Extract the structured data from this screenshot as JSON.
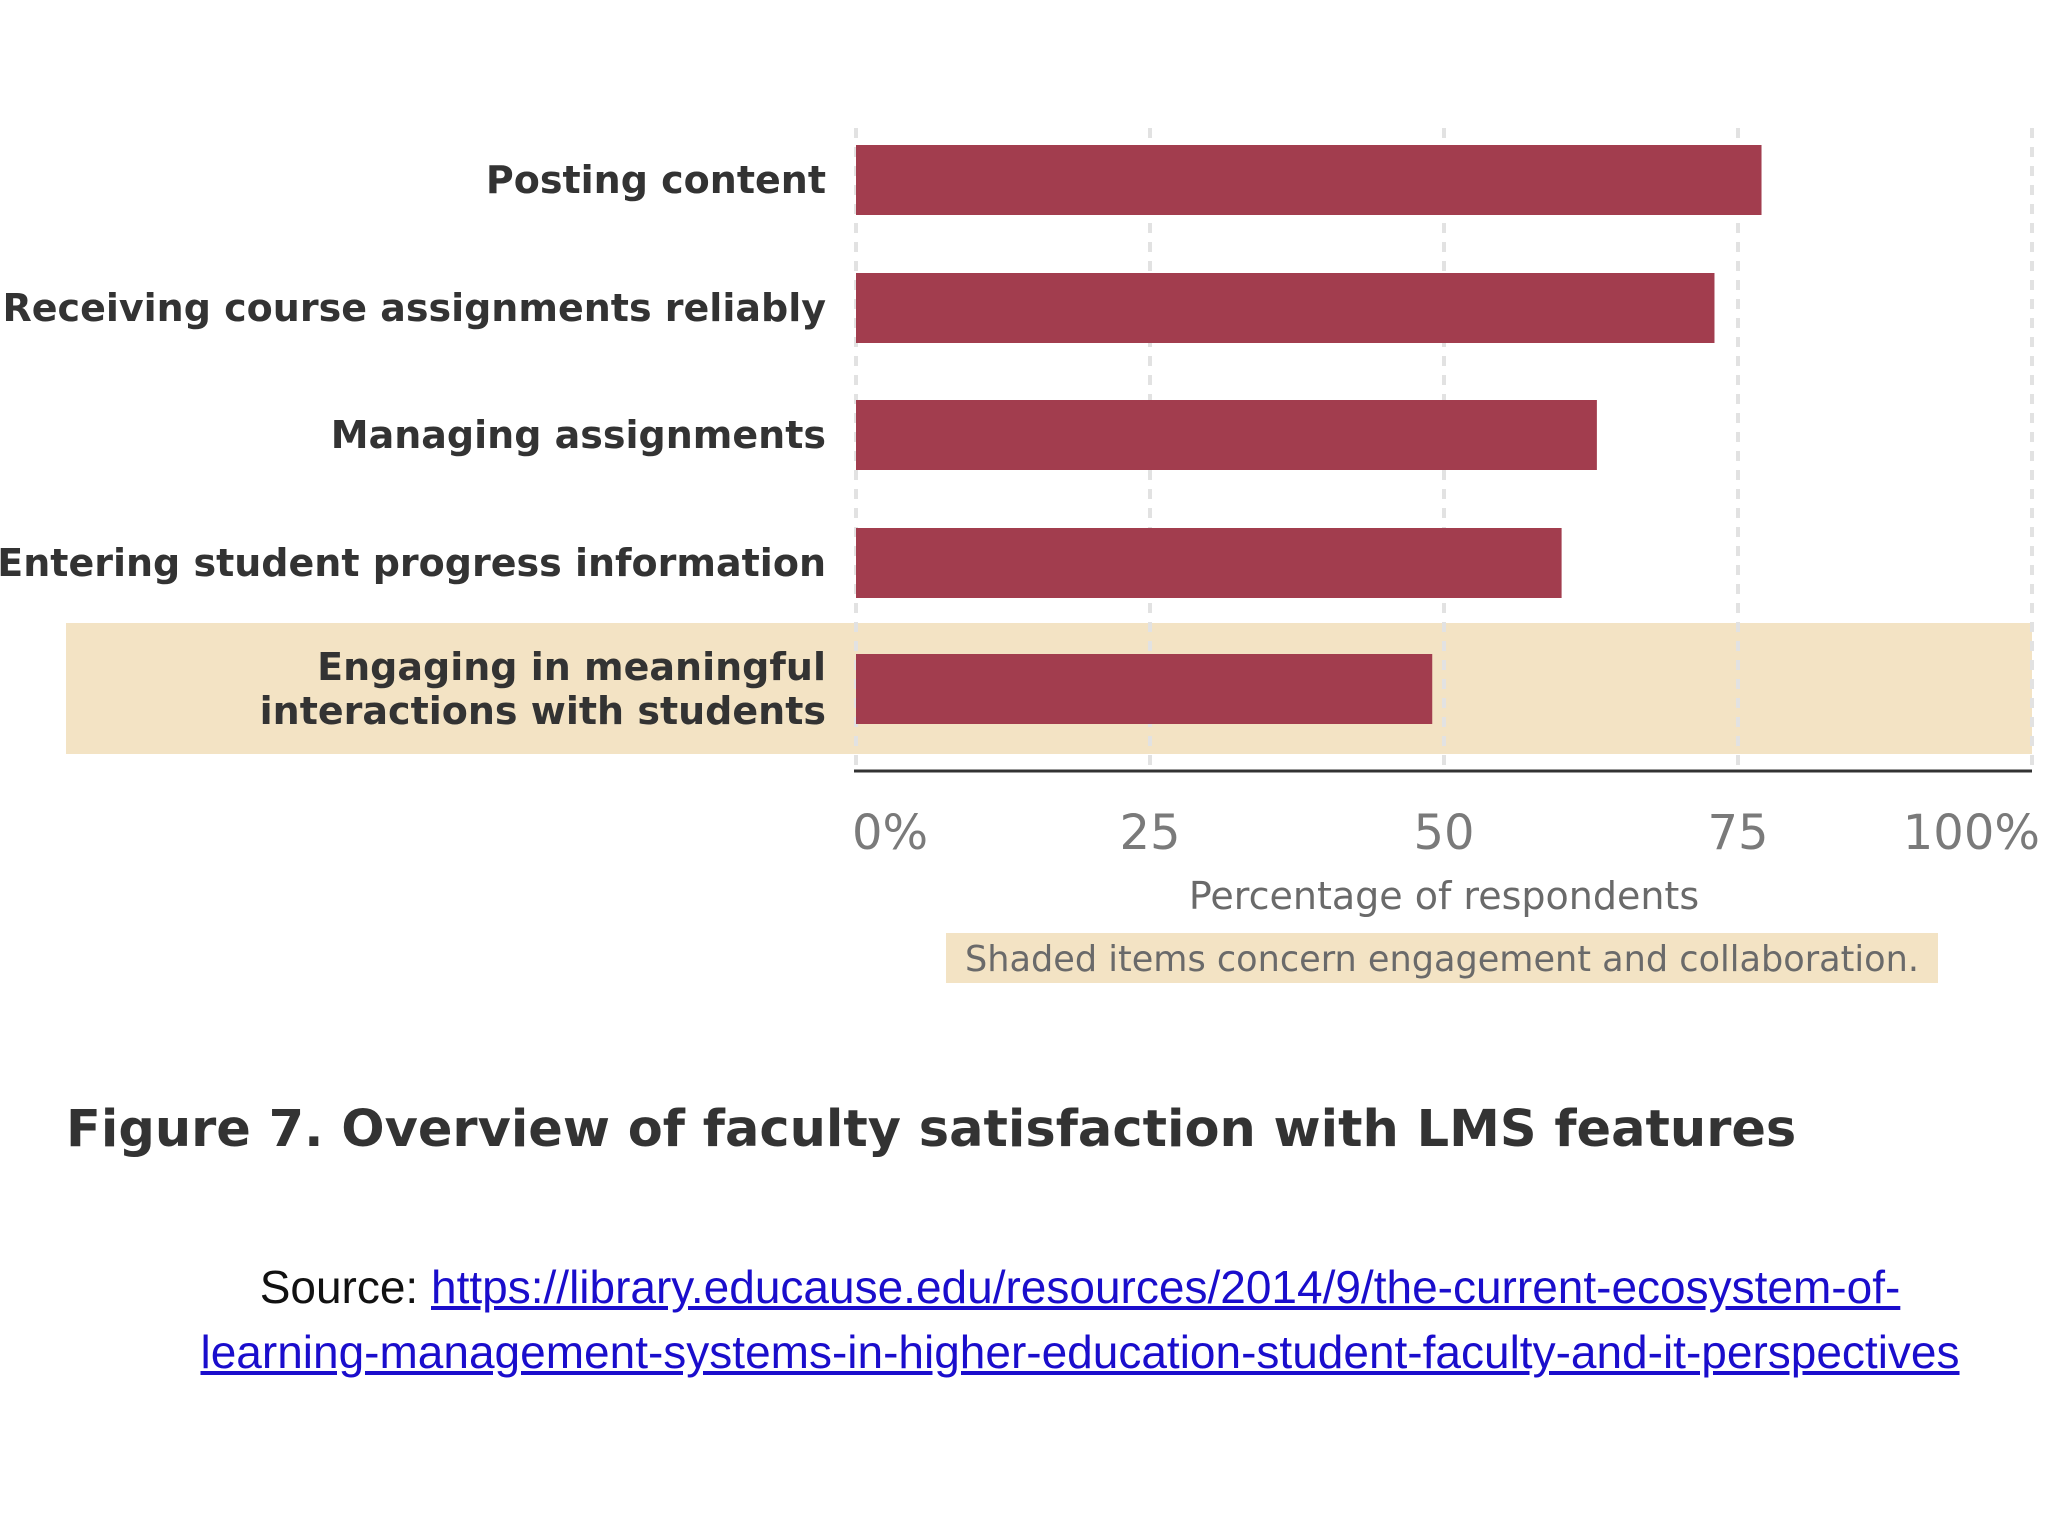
{
  "chart_data": {
    "type": "bar",
    "orientation": "horizontal",
    "categories": [
      [
        "Posting content"
      ],
      [
        "Receiving course assignments reliably"
      ],
      [
        "Managing assignments"
      ],
      [
        "Entering student progress information"
      ],
      [
        "Engaging in meaningful",
        "interactions with students"
      ]
    ],
    "values": [
      77,
      73,
      63,
      60,
      49
    ],
    "shaded_categories": [
      4
    ],
    "xlim": [
      0,
      100
    ],
    "xticks": [
      {
        "value": 0,
        "label": "0%"
      },
      {
        "value": 25,
        "label": "25"
      },
      {
        "value": 50,
        "label": "50"
      },
      {
        "value": 75,
        "label": "75"
      },
      {
        "value": 100,
        "label": "100%"
      }
    ],
    "xlabel": "Percentage of respondents",
    "note": "Shaded items concern engagement and collaboration.",
    "grid": "vertical dashed",
    "colors": {
      "bar": "#a23d4e",
      "shade": "#f3e3c4",
      "grid": "#e2e2e2",
      "axis": "#333333"
    }
  },
  "caption": "Figure 7. Overview of faculty satisfaction with LMS features",
  "source": {
    "label": "Source: ",
    "url": "https://library.educause.edu/resources/2014/9/the-current-ecosystem-of-learning-management-systems-in-higher-education-student-faculty-and-it-perspectives"
  }
}
